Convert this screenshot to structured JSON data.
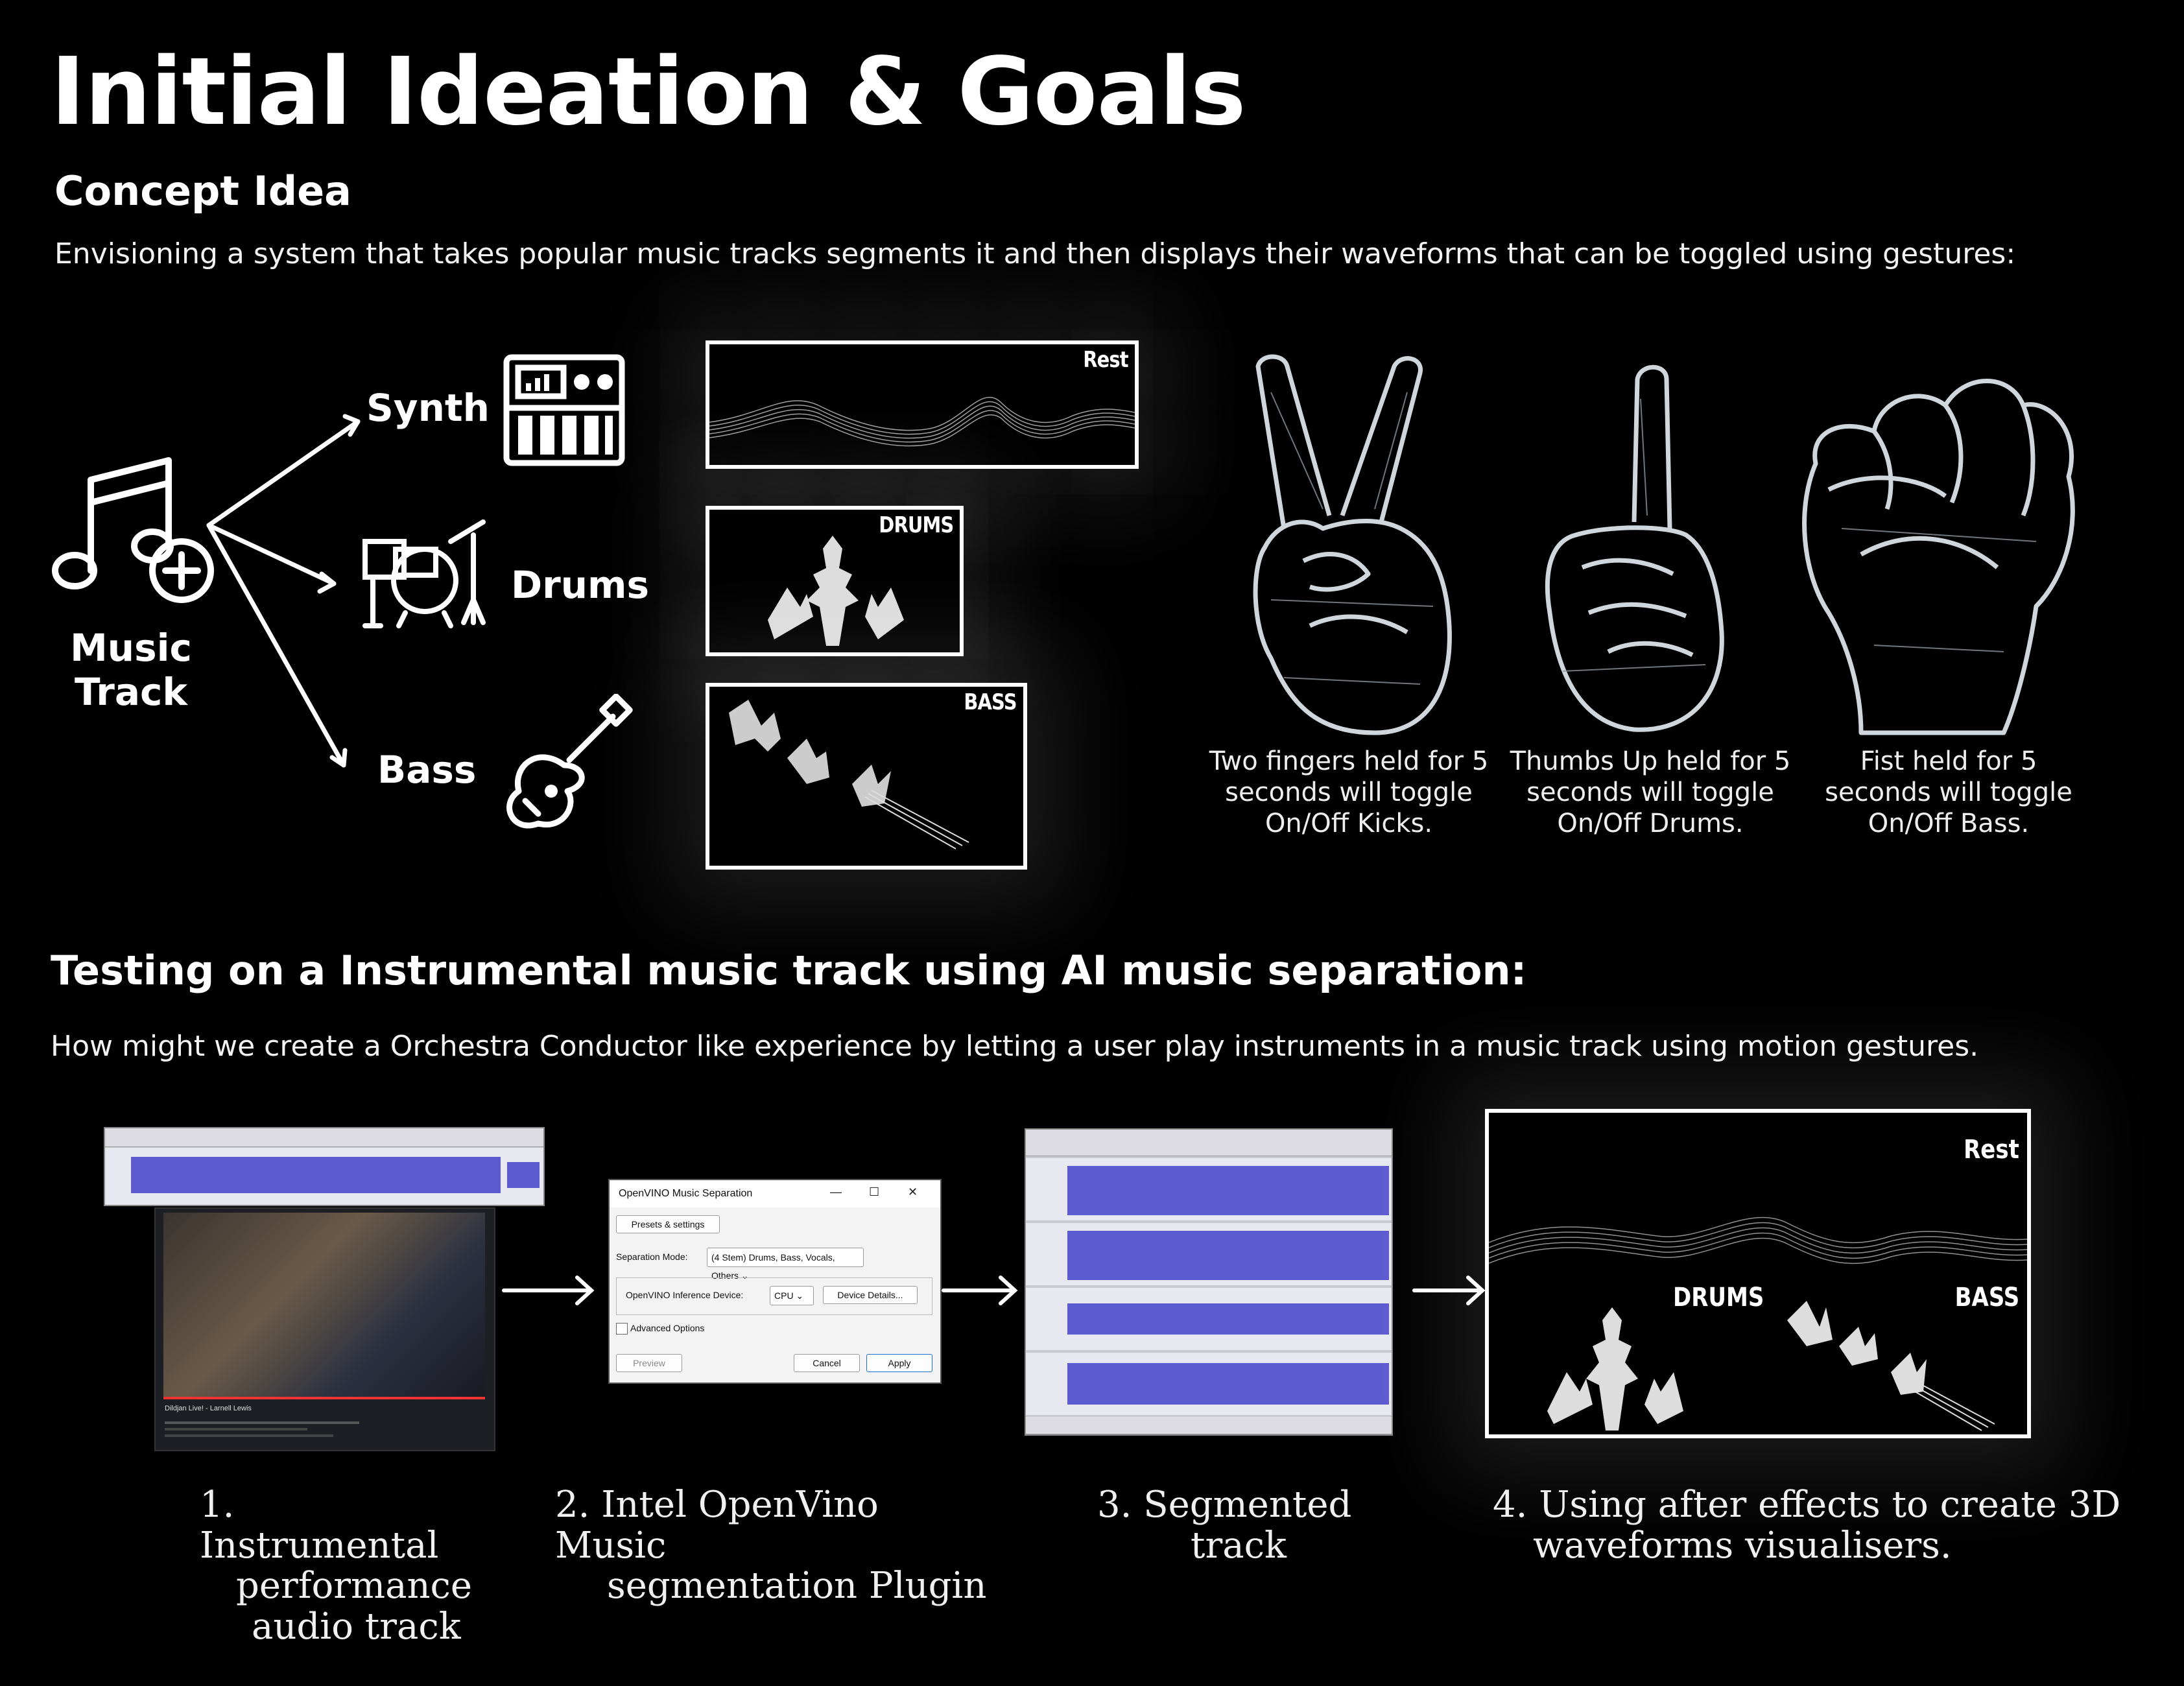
{
  "title": "Initial Ideation & Goals",
  "concept": {
    "heading": "Concept Idea",
    "description": "Envisioning a system that takes popular music tracks segments it and then displays their waveforms that can be toggled using gestures:"
  },
  "diagram": {
    "source_line1": "Music",
    "source_line2": "Track",
    "branches": [
      {
        "label": "Synth",
        "icon": "synth-keyboard-icon"
      },
      {
        "label": "Drums",
        "icon": "drum-kit-icon"
      },
      {
        "label": "Bass",
        "icon": "guitar-icon"
      }
    ],
    "waveforms": [
      {
        "label": "Rest"
      },
      {
        "label": "DRUMS"
      },
      {
        "label": "BASS"
      }
    ]
  },
  "gestures": [
    {
      "icon": "peace-sign-hand-icon",
      "caption_l1": "Two fingers held for 5",
      "caption_l2": "seconds will toggle",
      "caption_l3": "On/Off Kicks."
    },
    {
      "icon": "thumbs-up-hand-icon",
      "caption_l1": "Thumbs Up held for 5",
      "caption_l2": "seconds will toggle",
      "caption_l3": "On/Off Drums."
    },
    {
      "icon": "fist-hand-icon",
      "caption_l1": "Fist held for 5",
      "caption_l2": "seconds will toggle",
      "caption_l3": "On/Off Bass."
    }
  ],
  "testing": {
    "heading": "Testing on a Instrumental music track using AI music separation:",
    "question": "How might we create a Orchestra Conductor like experience by letting a user play instruments in a music track using motion gestures."
  },
  "dialog": {
    "title": "OpenVINO Music Separation",
    "presets_label": "Presets & settings",
    "mode_label": "Separation Mode:",
    "mode_value": "(4 Stem) Drums, Bass, Vocals, Others",
    "device_label": "OpenVINO Inference Device:",
    "device_value": "CPU",
    "device_details": "Device Details...",
    "advanced": "Advanced Options",
    "preview": "Preview",
    "cancel": "Cancel",
    "apply": "Apply"
  },
  "video": {
    "title": "Dildjan Live! - Larnell Lewis"
  },
  "result": {
    "rest": "Rest",
    "drums": "DRUMS",
    "bass": "BASS"
  },
  "steps": [
    {
      "l1": "1. Instrumental",
      "l2": "performance",
      "l3": "audio track"
    },
    {
      "l1": "2. Intel OpenVino Music",
      "l2": "segmentation Plugin"
    },
    {
      "l1": "3. Segmented",
      "l2": "track"
    },
    {
      "l1": "4. Using after effects to create 3D",
      "l2": "waveforms visualisers."
    }
  ],
  "colors": {
    "background": "#000000",
    "text": "#ffffff",
    "waveform_blue": "#5d5bd0"
  }
}
